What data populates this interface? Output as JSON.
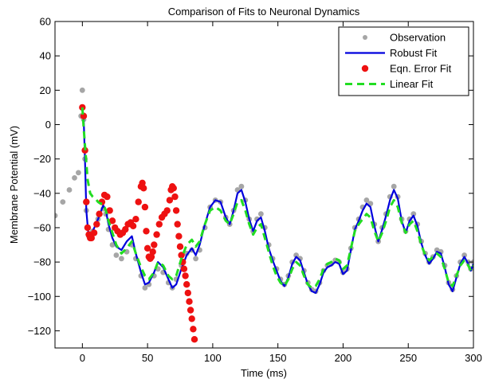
{
  "chart_data": {
    "type": "line",
    "title": "Comparison of Fits to Neuronal Dynamics",
    "xlabel": "Time (ms)",
    "ylabel": "Membrane Potential (mV)",
    "xlim": [
      -21,
      300
    ],
    "ylim": [
      -130,
      60
    ],
    "xticks": [
      0,
      50,
      100,
      150,
      200,
      250,
      300
    ],
    "xtick_labels": [
      "0",
      "50",
      "100",
      "150",
      "200",
      "250",
      "300"
    ],
    "yticks": [
      -120,
      -100,
      -80,
      -60,
      -40,
      -20,
      0,
      20,
      40,
      60
    ],
    "ytick_labels": [
      "−120",
      "−100",
      "−80",
      "−60",
      "−40",
      "−20",
      "0",
      "20",
      "40",
      "60"
    ],
    "grid": false,
    "legend_position": "top-right",
    "series": [
      {
        "name": "Observation",
        "style": "dots",
        "color": "#a6a6a6",
        "x": [
          -21,
          -15,
          -10,
          -6,
          -3,
          -1,
          0,
          1,
          2,
          3,
          5,
          8,
          12,
          16,
          18,
          20,
          23,
          26,
          30,
          34,
          38,
          41,
          45,
          48,
          51,
          55,
          58,
          62,
          66,
          69,
          72,
          76,
          80,
          84,
          87,
          90,
          94,
          98,
          102,
          106,
          110,
          113,
          116,
          119,
          122,
          125,
          128,
          131,
          134,
          137,
          140,
          143,
          146,
          149,
          152,
          155,
          158,
          161,
          164,
          167,
          170,
          173,
          176,
          179,
          182,
          185,
          188,
          191,
          194,
          197,
          200,
          203,
          206,
          209,
          212,
          215,
          218,
          221,
          224,
          227,
          230,
          233,
          236,
          239,
          242,
          245,
          248,
          251,
          254,
          257,
          260,
          263,
          266,
          269,
          272,
          275,
          278,
          281,
          284,
          287,
          290,
          293,
          296,
          298,
          300
        ],
        "y": [
          -53,
          -45,
          -38,
          -31,
          -28,
          5,
          20,
          3,
          -20,
          -50,
          -65,
          -62,
          -55,
          -49,
          -52,
          -61,
          -70,
          -76,
          -78,
          -74,
          -70,
          -78,
          -88,
          -95,
          -93,
          -88,
          -84,
          -86,
          -92,
          -95,
          -90,
          -82,
          -75,
          -73,
          -78,
          -73,
          -60,
          -48,
          -44,
          -45,
          -54,
          -58,
          -50,
          -38,
          -36,
          -44,
          -55,
          -62,
          -55,
          -52,
          -60,
          -70,
          -78,
          -84,
          -90,
          -93,
          -88,
          -80,
          -76,
          -78,
          -85,
          -92,
          -96,
          -97,
          -92,
          -85,
          -82,
          -81,
          -79,
          -80,
          -86,
          -84,
          -72,
          -60,
          -55,
          -48,
          -44,
          -46,
          -58,
          -68,
          -60,
          -52,
          -42,
          -36,
          -42,
          -55,
          -62,
          -55,
          -52,
          -58,
          -68,
          -75,
          -80,
          -77,
          -73,
          -74,
          -82,
          -92,
          -96,
          -88,
          -80,
          -76,
          -80,
          -84,
          -80
        ]
      },
      {
        "name": "Robust Fit",
        "style": "line",
        "color": "#0000dd",
        "x": [
          0,
          1,
          2,
          3,
          5,
          8,
          12,
          16,
          18,
          20,
          23,
          26,
          30,
          34,
          38,
          41,
          45,
          48,
          51,
          55,
          58,
          62,
          66,
          69,
          72,
          76,
          80,
          84,
          87,
          90,
          94,
          98,
          102,
          106,
          110,
          113,
          116,
          119,
          122,
          125,
          128,
          131,
          134,
          137,
          140,
          143,
          146,
          149,
          152,
          155,
          158,
          161,
          164,
          167,
          170,
          173,
          176,
          179,
          182,
          185,
          188,
          191,
          194,
          197,
          200,
          203,
          206,
          209,
          212,
          215,
          218,
          221,
          224,
          227,
          230,
          233,
          236,
          239,
          242,
          245,
          248,
          251,
          254,
          257,
          260,
          263,
          266,
          269,
          272,
          275,
          278,
          281,
          284,
          287,
          290,
          293,
          296,
          298,
          300
        ],
        "y": [
          10,
          3,
          -20,
          -50,
          -67,
          -62,
          -55,
          -47,
          -50,
          -58,
          -66,
          -71,
          -73,
          -68,
          -65,
          -75,
          -86,
          -93,
          -92,
          -86,
          -80,
          -83,
          -90,
          -95,
          -93,
          -84,
          -76,
          -72,
          -76,
          -70,
          -58,
          -48,
          -44,
          -45,
          -54,
          -58,
          -50,
          -40,
          -38,
          -45,
          -55,
          -62,
          -56,
          -54,
          -62,
          -72,
          -79,
          -85,
          -91,
          -94,
          -89,
          -81,
          -77,
          -79,
          -86,
          -93,
          -97,
          -98,
          -93,
          -86,
          -83,
          -82,
          -80,
          -81,
          -87,
          -85,
          -73,
          -61,
          -56,
          -50,
          -46,
          -48,
          -59,
          -68,
          -61,
          -53,
          -44,
          -38,
          -43,
          -56,
          -63,
          -56,
          -53,
          -59,
          -69,
          -76,
          -81,
          -78,
          -74,
          -75,
          -83,
          -93,
          -97,
          -89,
          -81,
          -77,
          -81,
          -85,
          -81
        ]
      },
      {
        "name": "Eqn. Error Fit",
        "style": "dots-large",
        "color": "#ee1111",
        "x": [
          0,
          1,
          2,
          3,
          4,
          5,
          6,
          7,
          9,
          11,
          13,
          15,
          17,
          19,
          21,
          23,
          25,
          27,
          29,
          31,
          33,
          35,
          37,
          39,
          41,
          43,
          45,
          46,
          47,
          48,
          49,
          50,
          51,
          52,
          53,
          54,
          55,
          57,
          59,
          61,
          63,
          65,
          67,
          68,
          69,
          70,
          71,
          72,
          73,
          74,
          75,
          76,
          77,
          78,
          79,
          80,
          81,
          82,
          83,
          84,
          85,
          86
        ],
        "y": [
          10,
          5,
          -15,
          -45,
          -60,
          -64,
          -66,
          -66,
          -63,
          -58,
          -52,
          -45,
          -41,
          -42,
          -50,
          -56,
          -60,
          -62,
          -64,
          -63,
          -61,
          -58,
          -57,
          -59,
          -55,
          -45,
          -36,
          -34,
          -37,
          -48,
          -62,
          -72,
          -77,
          -78,
          -77,
          -74,
          -70,
          -64,
          -58,
          -54,
          -52,
          -50,
          -44,
          -38,
          -36,
          -37,
          -42,
          -50,
          -58,
          -65,
          -71,
          -76,
          -80,
          -84,
          -88,
          -93,
          -98,
          -103,
          -108,
          -113,
          -119,
          -125
        ]
      },
      {
        "name": "Linear Fit",
        "style": "dashed",
        "color": "#22dd22",
        "x": [
          0,
          1,
          2,
          3,
          4,
          6,
          8,
          10,
          12,
          14,
          16,
          18,
          20,
          23,
          26,
          30,
          34,
          38,
          41,
          45,
          48,
          51,
          55,
          58,
          62,
          66,
          69,
          72,
          76,
          80,
          84,
          87,
          90,
          94,
          98,
          102,
          106,
          110,
          113,
          116,
          119,
          122,
          125,
          128,
          131,
          134,
          137,
          140,
          143,
          146,
          149,
          152,
          155,
          158,
          161,
          164,
          167,
          170,
          173,
          176,
          179,
          182,
          185,
          188,
          191,
          194,
          197,
          200,
          203,
          206,
          209,
          212,
          215,
          218,
          221,
          224,
          227,
          230,
          233,
          236,
          239,
          242,
          245,
          248,
          251,
          254,
          257,
          260,
          263,
          266,
          269,
          272,
          275,
          278,
          281,
          284,
          287,
          290,
          293,
          296,
          298,
          300
        ],
        "y": [
          10,
          -2,
          -12,
          -22,
          -32,
          -40,
          -42,
          -43,
          -45,
          -46,
          -46,
          -50,
          -56,
          -63,
          -70,
          -75,
          -72,
          -68,
          -75,
          -83,
          -88,
          -90,
          -86,
          -80,
          -82,
          -88,
          -90,
          -88,
          -78,
          -70,
          -67,
          -71,
          -68,
          -58,
          -50,
          -48,
          -50,
          -56,
          -58,
          -52,
          -45,
          -44,
          -50,
          -58,
          -64,
          -60,
          -58,
          -66,
          -74,
          -82,
          -88,
          -92,
          -94,
          -90,
          -84,
          -80,
          -82,
          -88,
          -93,
          -95,
          -94,
          -90,
          -84,
          -81,
          -80,
          -78,
          -79,
          -84,
          -82,
          -72,
          -62,
          -58,
          -55,
          -52,
          -54,
          -62,
          -68,
          -63,
          -56,
          -48,
          -44,
          -48,
          -57,
          -63,
          -58,
          -56,
          -62,
          -70,
          -76,
          -79,
          -77,
          -75,
          -77,
          -84,
          -92,
          -94,
          -88,
          -82,
          -79,
          -82,
          -85,
          -82
        ]
      }
    ]
  }
}
